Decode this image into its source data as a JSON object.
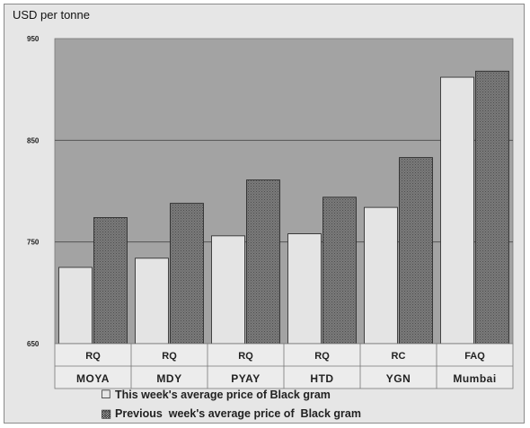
{
  "chart_data": {
    "type": "bar",
    "title": "",
    "ylabel": "USD per tonne",
    "ylim": [
      650,
      950
    ],
    "yticks": [
      650,
      750,
      850,
      950
    ],
    "ytick_labels": [
      "650",
      "750",
      "850",
      "950"
    ],
    "grid": true,
    "categories": [
      {
        "grade": "RQ",
        "market": "MOYA"
      },
      {
        "grade": "RQ",
        "market": "MDY"
      },
      {
        "grade": "RQ",
        "market": "PYAY"
      },
      {
        "grade": "RQ",
        "market": "HTD"
      },
      {
        "grade": "RC",
        "market": "YGN"
      },
      {
        "grade": "FAQ",
        "market": "Mumbai"
      }
    ],
    "series": [
      {
        "name": "This week's average price of Black gram",
        "values": [
          725,
          734,
          756,
          758,
          784,
          912
        ],
        "color": "#e4e4e4"
      },
      {
        "name": "Previous week's average price of Black gram",
        "values": [
          774,
          788,
          811,
          794,
          833,
          918
        ],
        "color": "#6f6f6f"
      }
    ],
    "legend": {
      "position": "bottom",
      "items": [
        {
          "marker": "☐",
          "label": "This week's average price of Black gram"
        },
        {
          "marker": "▩",
          "label": "Previous  week's average price of  Black gram"
        }
      ]
    },
    "colors": {
      "plot_background": "#a3a3a3",
      "frame_background": "#e6e6e6",
      "grid": "#555555"
    }
  }
}
